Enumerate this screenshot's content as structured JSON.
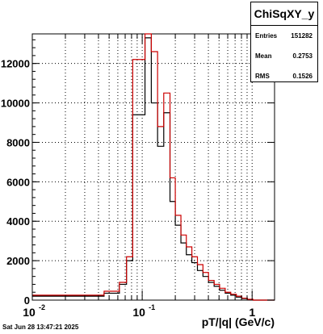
{
  "chart_data": {
    "type": "histogram-step",
    "xscale": "log",
    "xlim": [
      0.01,
      1.6
    ],
    "ylim": [
      0,
      13500
    ],
    "xlabel": "pT/|q| (GeV/c)",
    "x_ticks": [
      {
        "value": 0.01,
        "label": "10"
      },
      {
        "value": 0.1,
        "label": "10"
      },
      {
        "value": 1,
        "label": "1"
      }
    ],
    "x_tick_exponent": "-2",
    "x_tick_exponent_2": "-1",
    "y_ticks": [
      0,
      2000,
      4000,
      6000,
      8000,
      10000,
      12000
    ],
    "y_tick_labels": [
      "0",
      "2000",
      "4000",
      "6000",
      "8000",
      "10000",
      "12000"
    ],
    "grid": true,
    "series": [
      {
        "color": "#000000",
        "edges": [
          0.01,
          0.045,
          0.062,
          0.072,
          0.082,
          0.093,
          0.106,
          0.121,
          0.138,
          0.157,
          0.179,
          0.2,
          0.225,
          0.252,
          0.283,
          0.318,
          0.357,
          0.401,
          0.451,
          0.506,
          0.569,
          0.639,
          0.718,
          0.806,
          0.905,
          1.02,
          1.6
        ],
        "values": [
          200,
          350,
          800,
          2000,
          9400,
          9400,
          13300,
          10000,
          7800,
          9500,
          5000,
          3800,
          2900,
          2300,
          1900,
          1500,
          1200,
          900,
          700,
          500,
          350,
          250,
          150,
          80,
          30,
          0
        ]
      },
      {
        "color": "#cc0000",
        "edges": [
          0.01,
          0.045,
          0.062,
          0.072,
          0.082,
          0.093,
          0.106,
          0.121,
          0.138,
          0.157,
          0.179,
          0.2,
          0.225,
          0.252,
          0.283,
          0.318,
          0.357,
          0.401,
          0.451,
          0.506,
          0.569,
          0.639,
          0.718,
          0.806,
          0.905,
          1.02,
          1.6
        ],
        "values": [
          250,
          450,
          900,
          2200,
          12200,
          12200,
          13500,
          12600,
          8800,
          10500,
          6200,
          4300,
          3300,
          2700,
          2200,
          1800,
          1400,
          1000,
          800,
          600,
          400,
          300,
          200,
          100,
          40,
          0
        ]
      }
    ]
  },
  "stats": {
    "title": "ChiSqXY_y",
    "rows": [
      {
        "key": "Entries",
        "value": "151282"
      },
      {
        "key": "Mean",
        "value": "0.2753"
      },
      {
        "key": "RMS",
        "value": "0.1526"
      }
    ]
  },
  "footer": "Sat Jun 28 13:47:21 2025"
}
